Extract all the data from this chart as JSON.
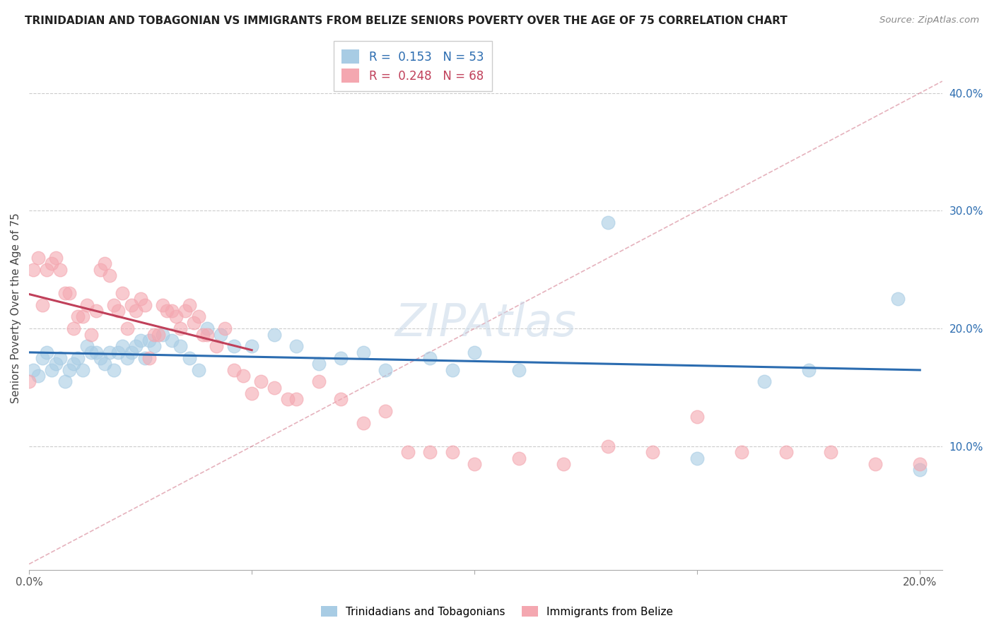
{
  "title": "TRINIDADIAN AND TOBAGONIAN VS IMMIGRANTS FROM BELIZE SENIORS POVERTY OVER THE AGE OF 75 CORRELATION CHART",
  "source": "Source: ZipAtlas.com",
  "ylabel": "Seniors Poverty Over the Age of 75",
  "xlim": [
    0.0,
    0.205
  ],
  "ylim": [
    -0.005,
    0.44
  ],
  "blue_R": 0.153,
  "blue_N": 53,
  "pink_R": 0.248,
  "pink_N": 68,
  "blue_color": "#a8cce4",
  "pink_color": "#f4a7b0",
  "blue_line_color": "#2b6cb0",
  "pink_line_color": "#c0405a",
  "legend_blue_label": "Trinidadians and Tobagonians",
  "legend_pink_label": "Immigrants from Belize",
  "yticks": [
    0.1,
    0.2,
    0.3,
    0.4
  ],
  "ytick_labels": [
    "10.0%",
    "20.0%",
    "30.0%",
    "40.0%"
  ],
  "blue_scatter_x": [
    0.001,
    0.002,
    0.003,
    0.004,
    0.005,
    0.006,
    0.007,
    0.008,
    0.009,
    0.01,
    0.011,
    0.012,
    0.013,
    0.014,
    0.015,
    0.016,
    0.017,
    0.018,
    0.019,
    0.02,
    0.021,
    0.022,
    0.023,
    0.024,
    0.025,
    0.026,
    0.027,
    0.028,
    0.03,
    0.032,
    0.034,
    0.036,
    0.038,
    0.04,
    0.043,
    0.046,
    0.05,
    0.055,
    0.06,
    0.065,
    0.07,
    0.075,
    0.08,
    0.09,
    0.095,
    0.1,
    0.11,
    0.13,
    0.15,
    0.165,
    0.175,
    0.195,
    0.2
  ],
  "blue_scatter_y": [
    0.165,
    0.16,
    0.175,
    0.18,
    0.165,
    0.17,
    0.175,
    0.155,
    0.165,
    0.17,
    0.175,
    0.165,
    0.185,
    0.18,
    0.18,
    0.175,
    0.17,
    0.18,
    0.165,
    0.18,
    0.185,
    0.175,
    0.18,
    0.185,
    0.19,
    0.175,
    0.19,
    0.185,
    0.195,
    0.19,
    0.185,
    0.175,
    0.165,
    0.2,
    0.195,
    0.185,
    0.185,
    0.195,
    0.185,
    0.17,
    0.175,
    0.18,
    0.165,
    0.175,
    0.165,
    0.18,
    0.165,
    0.29,
    0.09,
    0.155,
    0.165,
    0.225,
    0.08
  ],
  "pink_scatter_x": [
    0.0,
    0.001,
    0.002,
    0.003,
    0.004,
    0.005,
    0.006,
    0.007,
    0.008,
    0.009,
    0.01,
    0.011,
    0.012,
    0.013,
    0.014,
    0.015,
    0.016,
    0.017,
    0.018,
    0.019,
    0.02,
    0.021,
    0.022,
    0.023,
    0.024,
    0.025,
    0.026,
    0.027,
    0.028,
    0.029,
    0.03,
    0.031,
    0.032,
    0.033,
    0.034,
    0.035,
    0.036,
    0.037,
    0.038,
    0.039,
    0.04,
    0.042,
    0.044,
    0.046,
    0.048,
    0.05,
    0.052,
    0.055,
    0.058,
    0.06,
    0.065,
    0.07,
    0.075,
    0.08,
    0.085,
    0.09,
    0.095,
    0.1,
    0.11,
    0.12,
    0.13,
    0.14,
    0.15,
    0.16,
    0.17,
    0.18,
    0.19,
    0.2
  ],
  "pink_scatter_y": [
    0.155,
    0.25,
    0.26,
    0.22,
    0.25,
    0.255,
    0.26,
    0.25,
    0.23,
    0.23,
    0.2,
    0.21,
    0.21,
    0.22,
    0.195,
    0.215,
    0.25,
    0.255,
    0.245,
    0.22,
    0.215,
    0.23,
    0.2,
    0.22,
    0.215,
    0.225,
    0.22,
    0.175,
    0.195,
    0.195,
    0.22,
    0.215,
    0.215,
    0.21,
    0.2,
    0.215,
    0.22,
    0.205,
    0.21,
    0.195,
    0.195,
    0.185,
    0.2,
    0.165,
    0.16,
    0.145,
    0.155,
    0.15,
    0.14,
    0.14,
    0.155,
    0.14,
    0.12,
    0.13,
    0.095,
    0.095,
    0.095,
    0.085,
    0.09,
    0.085,
    0.1,
    0.095,
    0.125,
    0.095,
    0.095,
    0.095,
    0.085,
    0.085
  ]
}
